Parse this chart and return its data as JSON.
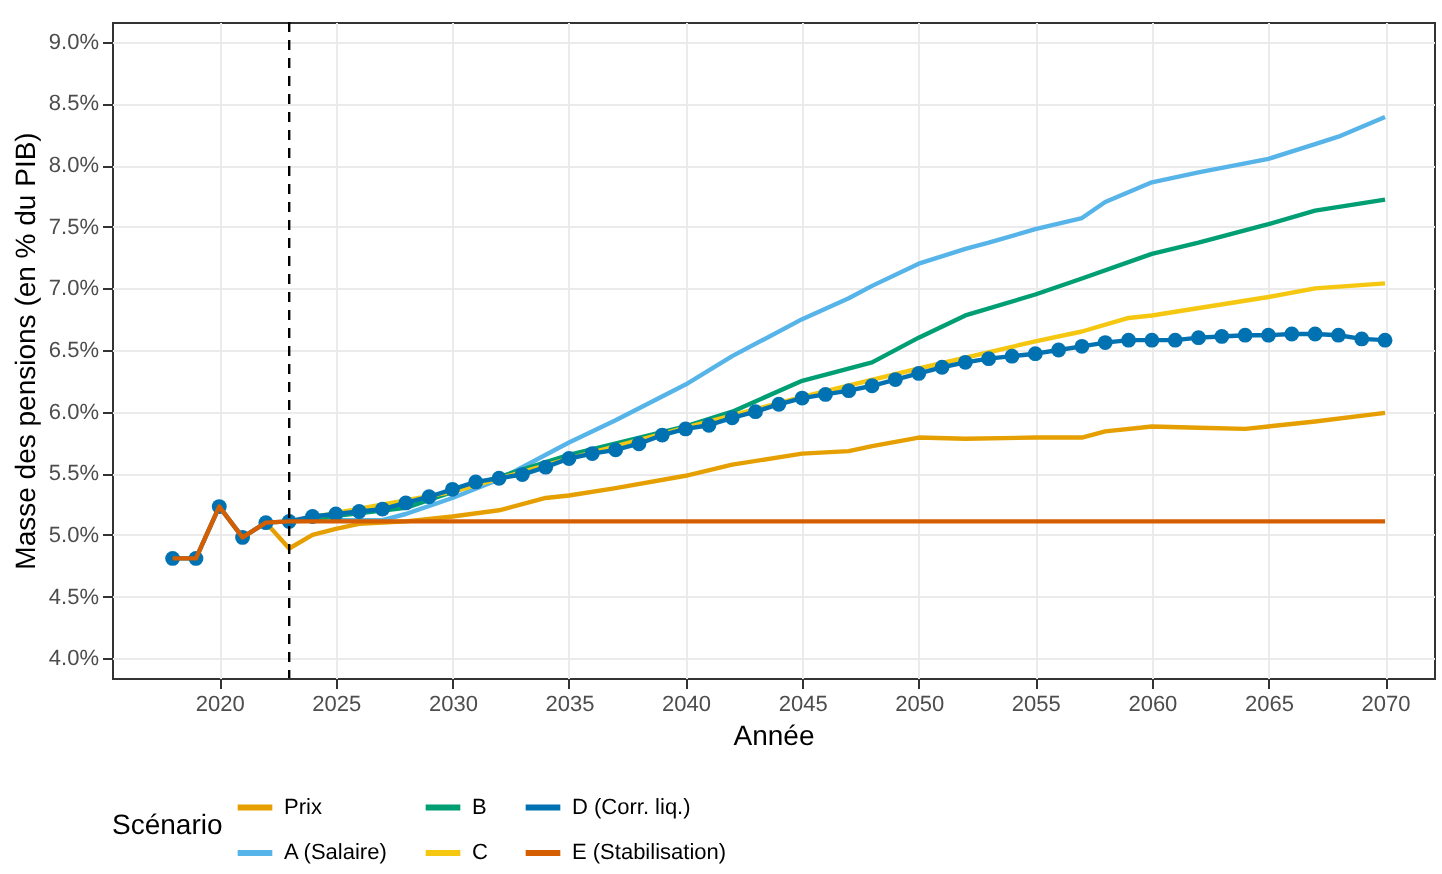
{
  "chart_data": {
    "type": "line",
    "xlabel": "Année",
    "ylabel": "Masse des pensions (en % du PIB)",
    "legend_title": "Scénario",
    "xlim": [
      2015.4,
      2072.1
    ],
    "xticks": [
      2020,
      2025,
      2030,
      2035,
      2040,
      2045,
      2050,
      2055,
      2060,
      2065,
      2070
    ],
    "ylim": [
      3.84,
      9.16
    ],
    "yticks": [
      {
        "value": 4.0,
        "label": "4.0%"
      },
      {
        "value": 4.5,
        "label": "4.5%"
      },
      {
        "value": 5.0,
        "label": "5.0%"
      },
      {
        "value": 5.5,
        "label": "5.5%"
      },
      {
        "value": 6.0,
        "label": "6.0%"
      },
      {
        "value": 6.5,
        "label": "6.5%"
      },
      {
        "value": 7.0,
        "label": "7.0%"
      },
      {
        "value": 7.5,
        "label": "7.5%"
      },
      {
        "value": 8.0,
        "label": "8.0%"
      },
      {
        "value": 8.5,
        "label": "8.5%"
      },
      {
        "value": 9.0,
        "label": "9.0%"
      }
    ],
    "grid": true,
    "legend": "bottom",
    "ref_lines": [
      {
        "axis": "x",
        "value": 2023,
        "color": "#000000",
        "line_style": "dashed"
      }
    ],
    "series": [
      {
        "name": "Prix",
        "color": "#e69f00",
        "marker": "none",
        "x": [
          2022,
          2023,
          2024,
          2025,
          2026,
          2028,
          2030,
          2032,
          2034,
          2035,
          2037,
          2040,
          2042,
          2045,
          2047,
          2048,
          2050,
          2052,
          2055,
          2057,
          2058,
          2060,
          2062,
          2064,
          2065,
          2067,
          2070
        ],
        "values": [
          5.1,
          4.89,
          5.0,
          5.05,
          5.09,
          5.11,
          5.15,
          5.2,
          5.3,
          5.32,
          5.38,
          5.48,
          5.57,
          5.66,
          5.68,
          5.72,
          5.79,
          5.78,
          5.79,
          5.79,
          5.84,
          5.88,
          5.87,
          5.86,
          5.88,
          5.92,
          5.99
        ]
      },
      {
        "name": "A (Salaire)",
        "color": "#56b4e9",
        "marker": "none",
        "x": [
          2023,
          2025,
          2027,
          2028,
          2030,
          2032,
          2035,
          2037,
          2040,
          2042,
          2045,
          2047,
          2048,
          2050,
          2052,
          2053,
          2055,
          2057,
          2058,
          2060,
          2062,
          2065,
          2067,
          2068,
          2070
        ],
        "values": [
          5.11,
          5.12,
          5.12,
          5.17,
          5.3,
          5.45,
          5.75,
          5.93,
          6.22,
          6.45,
          6.75,
          6.92,
          7.02,
          7.2,
          7.32,
          7.37,
          7.48,
          7.57,
          7.7,
          7.86,
          7.94,
          8.05,
          8.17,
          8.23,
          8.39
        ]
      },
      {
        "name": "B",
        "color": "#009e73",
        "marker": "none",
        "x": [
          2023,
          2028,
          2030,
          2035,
          2040,
          2042,
          2045,
          2048,
          2050,
          2052,
          2055,
          2057,
          2060,
          2062,
          2065,
          2067,
          2070
        ],
        "values": [
          5.11,
          5.22,
          5.35,
          5.65,
          5.88,
          6.0,
          6.25,
          6.4,
          6.6,
          6.78,
          6.95,
          7.08,
          7.28,
          7.37,
          7.52,
          7.63,
          7.72
        ]
      },
      {
        "name": "C",
        "color": "#f5c710",
        "marker": "none",
        "x": [
          2023,
          2030,
          2035,
          2040,
          2045,
          2050,
          2055,
          2057,
          2059,
          2060,
          2065,
          2067,
          2070
        ],
        "values": [
          5.11,
          5.35,
          5.62,
          5.87,
          6.12,
          6.35,
          6.57,
          6.65,
          6.76,
          6.78,
          6.93,
          7.0,
          7.04
        ]
      },
      {
        "name": "D (Corr. liq.)",
        "color": "#0072b2",
        "marker": "circle",
        "x": [
          2018,
          2019,
          2020,
          2021,
          2022,
          2023,
          2024,
          2025,
          2026,
          2027,
          2028,
          2029,
          2030,
          2031,
          2032,
          2033,
          2034,
          2035,
          2036,
          2037,
          2038,
          2039,
          2040,
          2041,
          2042,
          2043,
          2044,
          2045,
          2046,
          2047,
          2048,
          2049,
          2050,
          2051,
          2052,
          2053,
          2054,
          2055,
          2056,
          2057,
          2058,
          2059,
          2060,
          2061,
          2062,
          2063,
          2064,
          2065,
          2066,
          2067,
          2068,
          2069,
          2070
        ],
        "values": [
          4.81,
          4.81,
          5.23,
          4.98,
          5.1,
          5.11,
          5.15,
          5.17,
          5.19,
          5.21,
          5.26,
          5.31,
          5.37,
          5.43,
          5.46,
          5.49,
          5.55,
          5.62,
          5.66,
          5.69,
          5.74,
          5.81,
          5.86,
          5.89,
          5.95,
          6.0,
          6.06,
          6.11,
          6.14,
          6.17,
          6.21,
          6.26,
          6.31,
          6.36,
          6.4,
          6.43,
          6.45,
          6.47,
          6.5,
          6.53,
          6.56,
          6.58,
          6.58,
          6.58,
          6.6,
          6.61,
          6.62,
          6.62,
          6.63,
          6.63,
          6.62,
          6.59,
          6.58
        ]
      },
      {
        "name": "E (Stabilisation)",
        "color": "#d55e00",
        "marker": "none",
        "x": [
          2018,
          2019,
          2020,
          2021,
          2022,
          2023,
          2070
        ],
        "values": [
          4.81,
          4.81,
          5.23,
          4.98,
          5.1,
          5.11,
          5.11
        ]
      }
    ]
  }
}
